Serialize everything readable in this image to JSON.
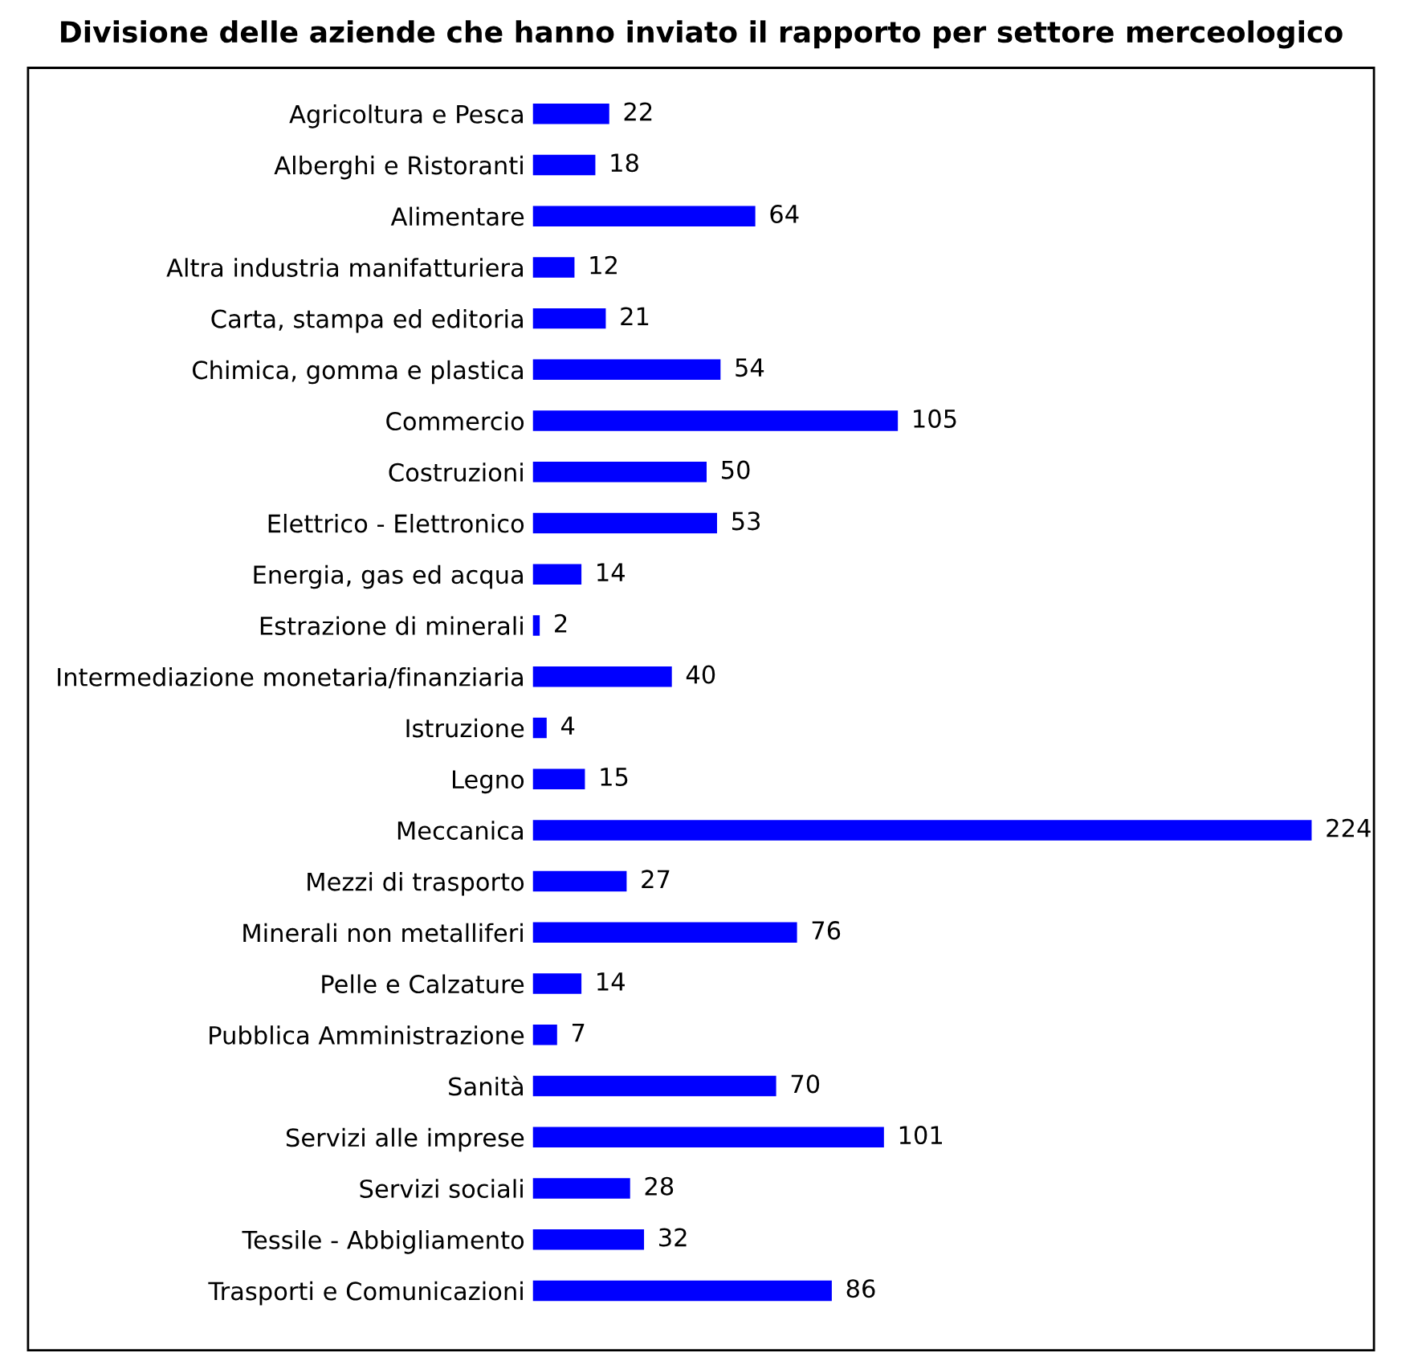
{
  "chart_data": {
    "type": "bar",
    "orientation": "horizontal",
    "title": "Divisione delle aziende che hanno inviato il rapporto per settore merceologico",
    "categories": [
      "Agricoltura e Pesca",
      "Alberghi e Ristoranti",
      "Alimentare",
      "Altra industria manifatturiera",
      "Carta, stampa ed editoria",
      "Chimica, gomma e plastica",
      "Commercio",
      "Costruzioni",
      "Elettrico - Elettronico",
      "Energia, gas ed acqua",
      "Estrazione di minerali",
      "Intermediazione monetaria/finanziaria",
      "Istruzione",
      "Legno",
      "Meccanica",
      "Mezzi di trasporto",
      "Minerali non metalliferi",
      "Pelle e Calzature",
      "Pubblica Amministrazione",
      "Sanità",
      "Servizi alle imprese",
      "Servizi sociali",
      "Tessile - Abbigliamento",
      "Trasporti e Comunicazioni"
    ],
    "values": [
      22,
      18,
      64,
      12,
      21,
      54,
      105,
      50,
      53,
      14,
      2,
      40,
      4,
      15,
      224,
      27,
      76,
      14,
      7,
      70,
      101,
      28,
      32,
      86
    ],
    "color": "#0000ff",
    "data_labels": true,
    "grid": false,
    "legend": false
  }
}
